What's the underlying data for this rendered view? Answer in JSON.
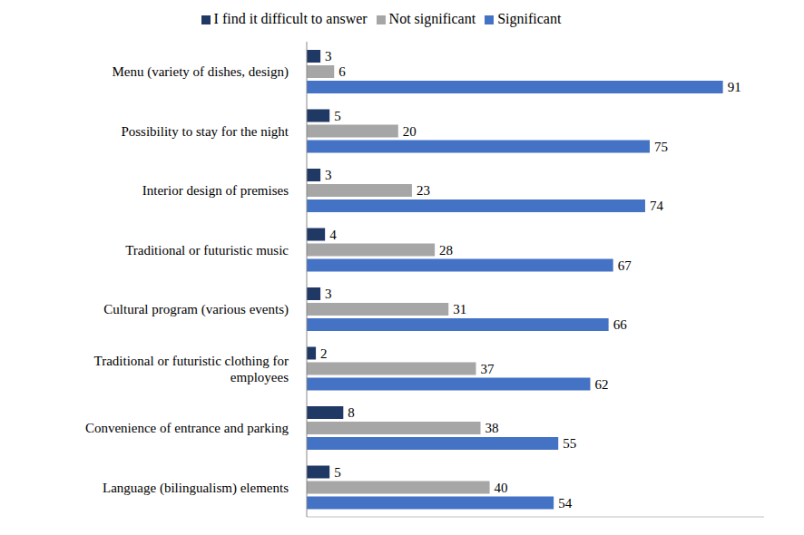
{
  "chart_data": {
    "type": "bar",
    "orientation": "horizontal",
    "categories": [
      "Menu (variety of dishes, design)",
      "Possibility to stay for the night",
      "Interior design of premises",
      "Traditional or futuristic music",
      "Cultural program (various events)",
      "Traditional or futuristic clothing for employees",
      "Convenience of entrance and parking",
      "Language (bilingualism) elements"
    ],
    "series": [
      {
        "name": "I find it difficult to answer",
        "color": "#203864",
        "values": [
          3,
          5,
          3,
          4,
          3,
          2,
          8,
          5
        ]
      },
      {
        "name": "Not significant",
        "color": "#a6a6a6",
        "values": [
          6,
          20,
          23,
          28,
          31,
          37,
          38,
          40
        ]
      },
      {
        "name": "Significant",
        "color": "#4472c4",
        "values": [
          91,
          75,
          74,
          67,
          66,
          62,
          55,
          54
        ]
      }
    ],
    "xlim": [
      0,
      100
    ],
    "legend": "top",
    "data_labels": true,
    "grid": false,
    "tick_labels": "y"
  }
}
